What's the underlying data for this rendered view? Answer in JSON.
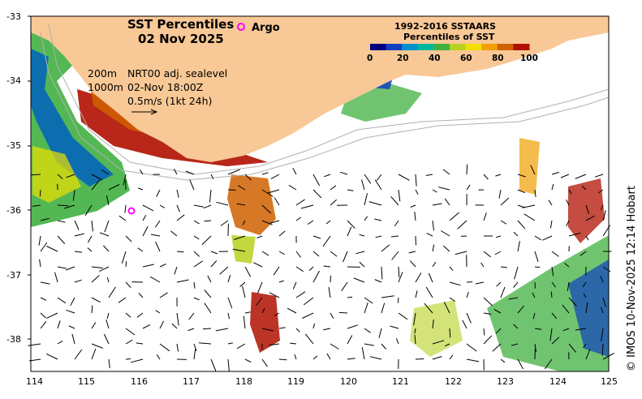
{
  "title_line1": "SST Percentiles",
  "title_line2": "02 Nov 2025",
  "argo_label": "Argo",
  "notes": {
    "depth_200": "200m",
    "depth_1000": "1000m",
    "sealevel_product": "NRT00 adj. sealevel",
    "sealevel_time": "02-Nov 18:00Z",
    "vector_scale": "0.5m/s (1kt 24h)"
  },
  "legend": {
    "title_line1": "1992-2016 SSTAARS",
    "title_line2": "Percentiles of SST",
    "ticks": [
      "0",
      "20",
      "40",
      "60",
      "80",
      "100"
    ],
    "colors": [
      "#000080",
      "#1040c0",
      "#0090d0",
      "#00b8a0",
      "#40b040",
      "#b8d020",
      "#f0e000",
      "#f0a000",
      "#d06000",
      "#b01000"
    ]
  },
  "credit": "© IMOS 10-Nov-2025 12:14 Hobart",
  "colors": {
    "land": "#f8c896",
    "argo_marker": "#ff00ff",
    "contour": "#b0b0b0"
  },
  "axes": {
    "x_ticks": [
      "114",
      "115",
      "116",
      "117",
      "118",
      "119",
      "120",
      "121",
      "122",
      "123",
      "124",
      "125"
    ],
    "y_ticks": [
      "-33",
      "-34",
      "-35",
      "-36",
      "-37",
      "-38"
    ]
  }
}
